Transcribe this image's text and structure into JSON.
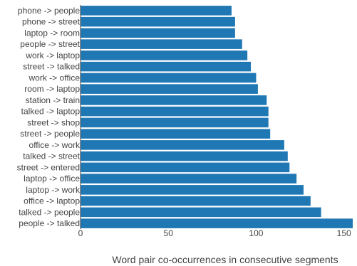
{
  "chart_data": {
    "type": "bar",
    "orientation": "horizontal",
    "categories": [
      "phone -> people",
      "phone -> street",
      "laptop -> room",
      "people -> street",
      "work -> laptop",
      "street -> talked",
      "work -> office",
      "room -> laptop",
      "station -> train",
      "talked -> laptop",
      "street -> shop",
      "street -> people",
      "office -> work",
      "talked -> street",
      "street -> entered",
      "laptop -> office",
      "laptop -> work",
      "office -> laptop",
      "talked -> people",
      "people -> talked"
    ],
    "values": [
      86,
      88,
      88,
      92,
      95,
      97,
      100,
      101,
      106,
      107,
      107,
      108,
      116,
      118,
      119,
      123,
      127,
      131,
      137,
      155
    ],
    "title": "",
    "xlabel": "Word pair co-occurrences in consecutive segments",
    "ylabel": "",
    "xlim": [
      0,
      155
    ],
    "xticks": [
      "0",
      "50",
      "100",
      "150"
    ],
    "xtick_values": [
      0,
      50,
      100,
      150
    ],
    "grid": false,
    "legend": "none",
    "bar_color": "#1f77b4"
  }
}
